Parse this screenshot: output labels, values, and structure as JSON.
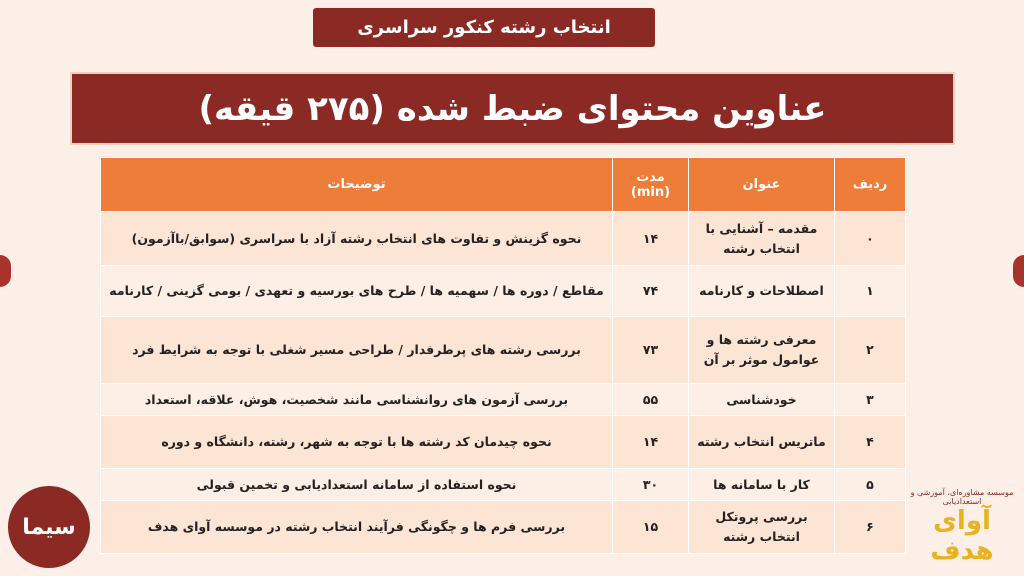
{
  "header": {
    "tab": "انتخاب رشته کنکور سراسری",
    "title": "عناوین محتوای ضبط شده (۲۷۵ قیقه)"
  },
  "table": {
    "columns": [
      "ردیف",
      "عنوان",
      "مدت",
      "توضیحات"
    ],
    "duration_unit": "(min)",
    "rows": [
      [
        "۰",
        "مقدمه – آشنایی با انتخاب رشته",
        "۱۴",
        "نحوه گزینش و تفاوت های انتخاب رشته آزاد با سراسری (سوابق/باآزمون)"
      ],
      [
        "۱",
        "اصطلاحات و کارنامه",
        "۷۴",
        "مقاطع / دوره ها / سهمیه ها / طرح های بورسیه و تعهدی / بومی گزینی /  کارنامه"
      ],
      [
        "۲",
        "معرفی رشته ها و عوامول موثر بر آن",
        "۷۳",
        "بررسی رشته های پرطرفدار / طراحی مسیر شغلی با توجه به شرایط فرد"
      ],
      [
        "۳",
        "خودشناسی",
        "۵۵",
        "بررسی آزمون های روانشناسی مانند شخصیت، هوش، علاقه، استعداد"
      ],
      [
        "۴",
        "ماتریس انتخاب رشته",
        "۱۴",
        "نحوه چیدمان کد رشته ها با توجه به شهر، رشته، دانشگاه و دوره"
      ],
      [
        "۵",
        "کار با سامانه ها",
        "۳۰",
        "نحوه استفاده از سامانه استعدادیابی و تخمین قبولی"
      ],
      [
        "۶",
        "بررسی پروتکل انتخاب رشته",
        "۱۵",
        "بررسی فرم ها و چگونگی فرآیند انتخاب رشته در موسسه آوای هدف"
      ]
    ]
  },
  "logos": {
    "left": "سیما",
    "right": "آوای هدف",
    "right_caption": "موسسه مشاوره‌ای، آموزشی و استعدادیابی"
  }
}
